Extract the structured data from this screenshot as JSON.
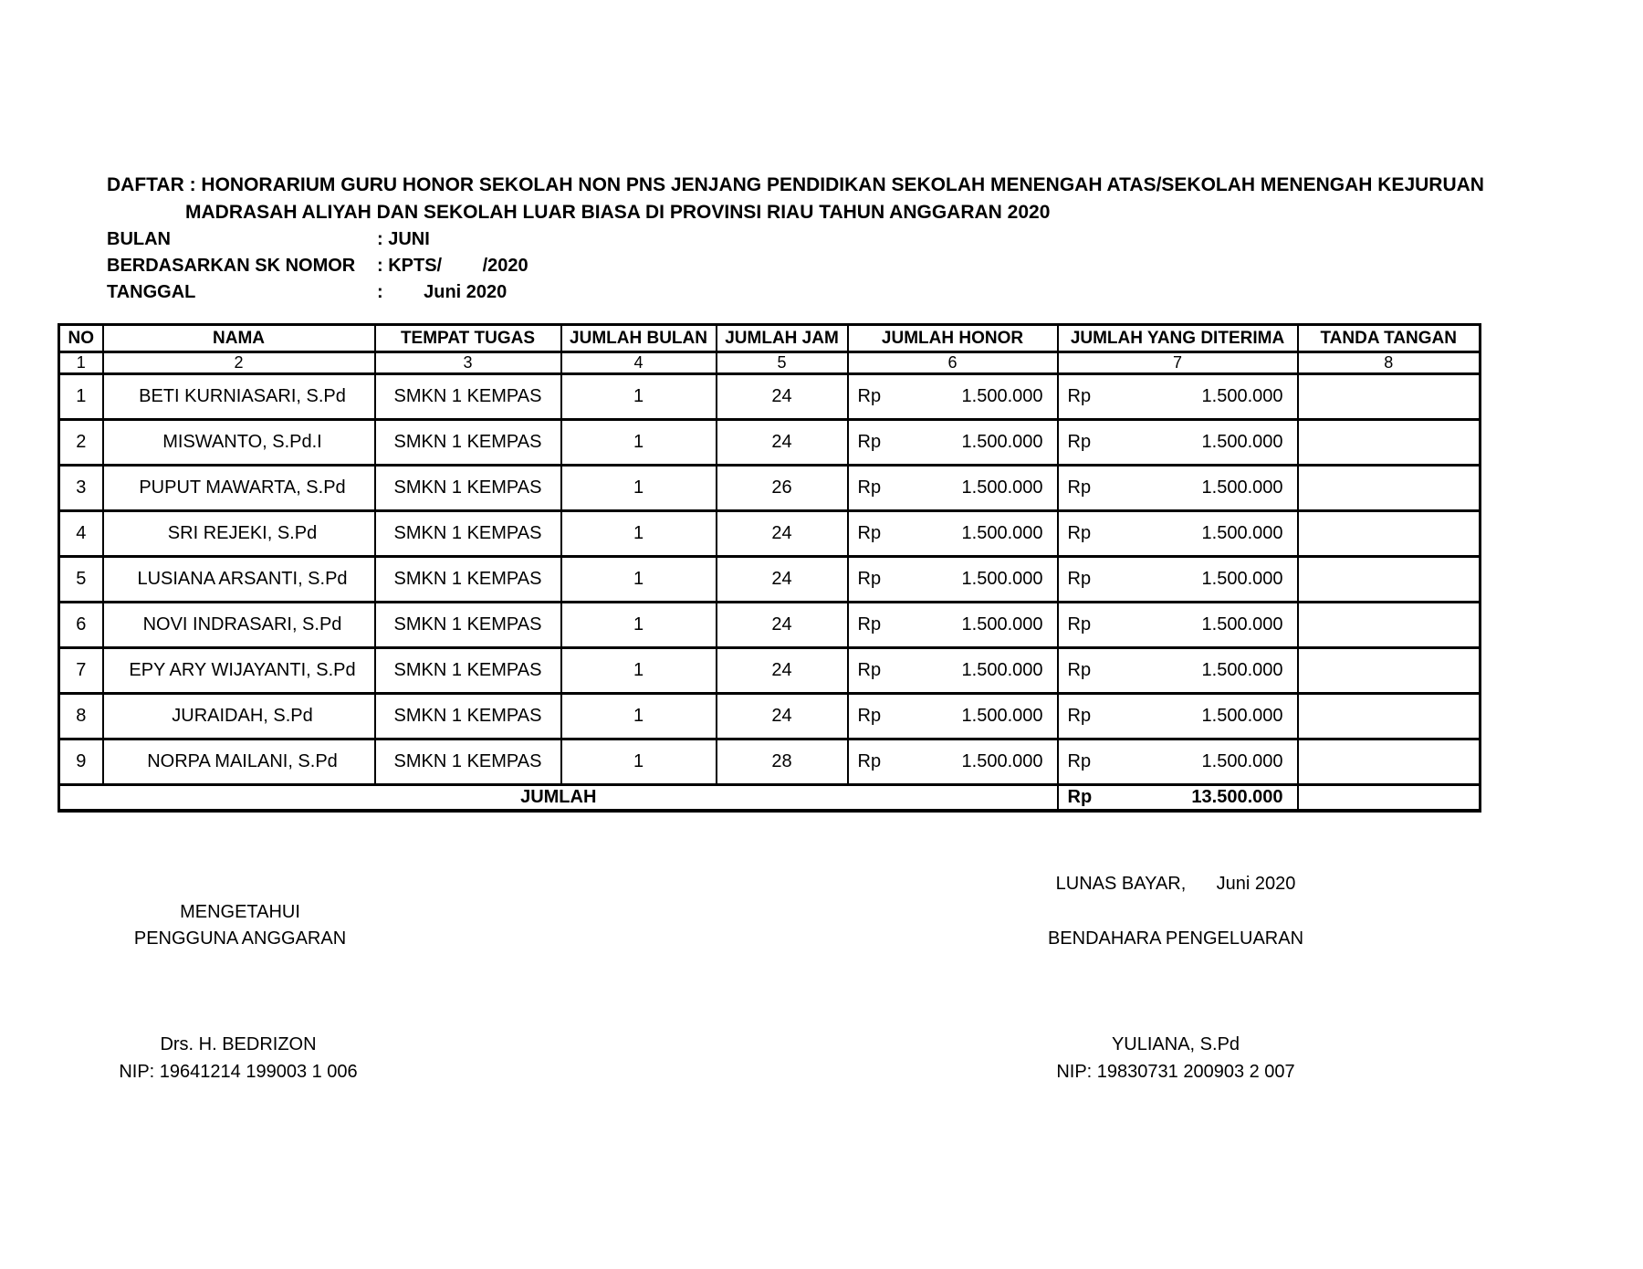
{
  "document": {
    "title_line1": "DAFTAR : HONORARIUM GURU HONOR SEKOLAH NON PNS JENJANG PENDIDIKAN SEKOLAH MENENGAH ATAS/SEKOLAH MENENGAH KEJURUAN",
    "title_line2": "MADRASAH ALIYAH DAN SEKOLAH LUAR BIASA DI PROVINSI RIAU TAHUN ANGGARAN 2020",
    "meta": [
      {
        "label": "BULAN",
        "value": ": JUNI"
      },
      {
        "label": "BERDASARKAN SK NOMOR",
        "value": ": KPTS/        /2020"
      },
      {
        "label": "TANGGAL",
        "value": ":        Juni 2020"
      }
    ]
  },
  "table": {
    "headers": [
      "NO",
      "NAMA",
      "TEMPAT TUGAS",
      "JUMLAH BULAN",
      "JUMLAH JAM",
      "JUMLAH HONOR",
      "JUMLAH YANG DITERIMA",
      "TANDA TANGAN"
    ],
    "column_numbers": [
      "1",
      "2",
      "3",
      "4",
      "5",
      "6",
      "7",
      "8"
    ],
    "currency_prefix": "Rp",
    "rows": [
      {
        "no": "1",
        "nama": "BETI KURNIASARI, S.Pd",
        "tempat": "SMKN 1 KEMPAS",
        "bulan": "1",
        "jam": "24",
        "honor": "1.500.000",
        "diterima": "1.500.000",
        "tanda_tangan": ""
      },
      {
        "no": "2",
        "nama": "MISWANTO, S.Pd.I",
        "tempat": "SMKN 1 KEMPAS",
        "bulan": "1",
        "jam": "24",
        "honor": "1.500.000",
        "diterima": "1.500.000",
        "tanda_tangan": ""
      },
      {
        "no": "3",
        "nama": "PUPUT MAWARTA, S.Pd",
        "tempat": "SMKN 1 KEMPAS",
        "bulan": "1",
        "jam": "26",
        "honor": "1.500.000",
        "diterima": "1.500.000",
        "tanda_tangan": ""
      },
      {
        "no": "4",
        "nama": "SRI REJEKI, S.Pd",
        "tempat": "SMKN 1 KEMPAS",
        "bulan": "1",
        "jam": "24",
        "honor": "1.500.000",
        "diterima": "1.500.000",
        "tanda_tangan": ""
      },
      {
        "no": "5",
        "nama": "LUSIANA ARSANTI, S.Pd",
        "tempat": "SMKN 1 KEMPAS",
        "bulan": "1",
        "jam": "24",
        "honor": "1.500.000",
        "diterima": "1.500.000",
        "tanda_tangan": ""
      },
      {
        "no": "6",
        "nama": "NOVI INDRASARI, S.Pd",
        "tempat": "SMKN 1 KEMPAS",
        "bulan": "1",
        "jam": "24",
        "honor": "1.500.000",
        "diterima": "1.500.000",
        "tanda_tangan": ""
      },
      {
        "no": "7",
        "nama": "EPY ARY WIJAYANTI, S.Pd",
        "tempat": "SMKN 1 KEMPAS",
        "bulan": "1",
        "jam": "24",
        "honor": "1.500.000",
        "diterima": "1.500.000",
        "tanda_tangan": ""
      },
      {
        "no": "8",
        "nama": "JURAIDAH, S.Pd",
        "tempat": "SMKN 1 KEMPAS",
        "bulan": "1",
        "jam": "24",
        "honor": "1.500.000",
        "diterima": "1.500.000",
        "tanda_tangan": ""
      },
      {
        "no": "9",
        "nama": "NORPA MAILANI, S.Pd",
        "tempat": "SMKN 1 KEMPAS",
        "bulan": "1",
        "jam": "28",
        "honor": "1.500.000",
        "diterima": "1.500.000",
        "tanda_tangan": ""
      }
    ],
    "total": {
      "label": "JUMLAH",
      "amount": "13.500.000"
    }
  },
  "footer": {
    "lunas_bayar": "LUNAS BAYAR,      Juni 2020",
    "left": {
      "line1": "MENGETAHUI",
      "line2": "PENGGUNA ANGGARAN",
      "name": "Drs. H. BEDRIZON",
      "nip": "NIP: 19641214 199003 1 006"
    },
    "right": {
      "line1": "BENDAHARA PENGELUARAN",
      "name": "YULIANA, S.Pd",
      "nip": "NIP: 19830731 200903 2 007"
    }
  }
}
